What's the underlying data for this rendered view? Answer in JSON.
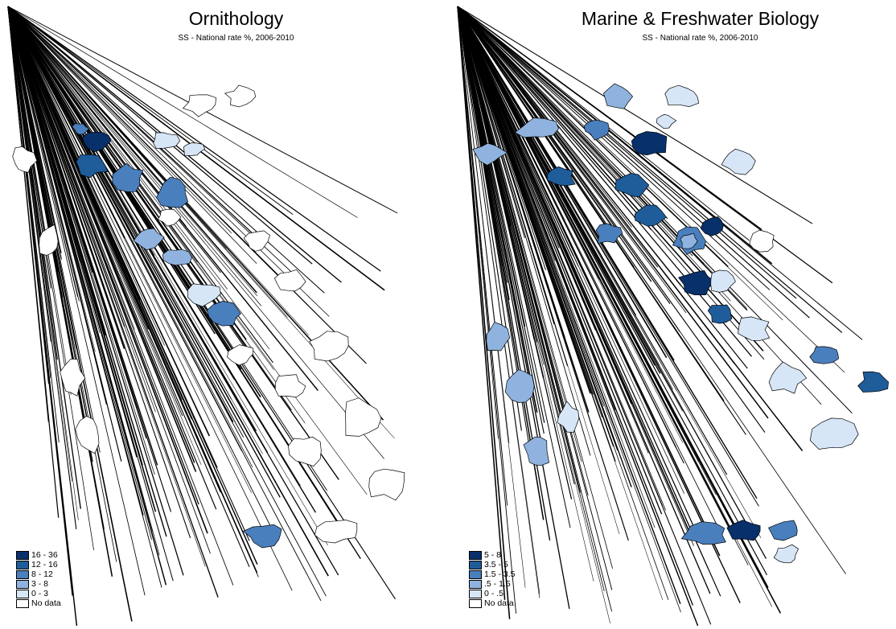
{
  "maps": [
    {
      "title": "Ornithology",
      "subtitle": "SS - National rate %, 2006-2010",
      "legend": [
        {
          "label": "16 - 36",
          "color": "#08306b"
        },
        {
          "label": "12 - 16",
          "color": "#1f5c9a"
        },
        {
          "label": "8 - 12",
          "color": "#4a7fbd"
        },
        {
          "label": "3 - 8",
          "color": "#8fb3de"
        },
        {
          "label": "0 - 3",
          "color": "#d6e6f7"
        },
        {
          "label": "No data",
          "color": "#ffffff"
        }
      ]
    },
    {
      "title": "Marine & Freshwater Biology",
      "subtitle": "SS - National rate %, 2006-2010",
      "legend": [
        {
          "label": "5 - 8",
          "color": "#08306b"
        },
        {
          "label": "3.5 - 5",
          "color": "#1f5c9a"
        },
        {
          "label": "1.5 - 3.5",
          "color": "#4a7fbd"
        },
        {
          "label": ".5 - 1.5",
          "color": "#8fb3de"
        },
        {
          "label": "0 - .5",
          "color": "#d6e6f7"
        },
        {
          "label": "No data",
          "color": "#ffffff"
        }
      ]
    }
  ]
}
